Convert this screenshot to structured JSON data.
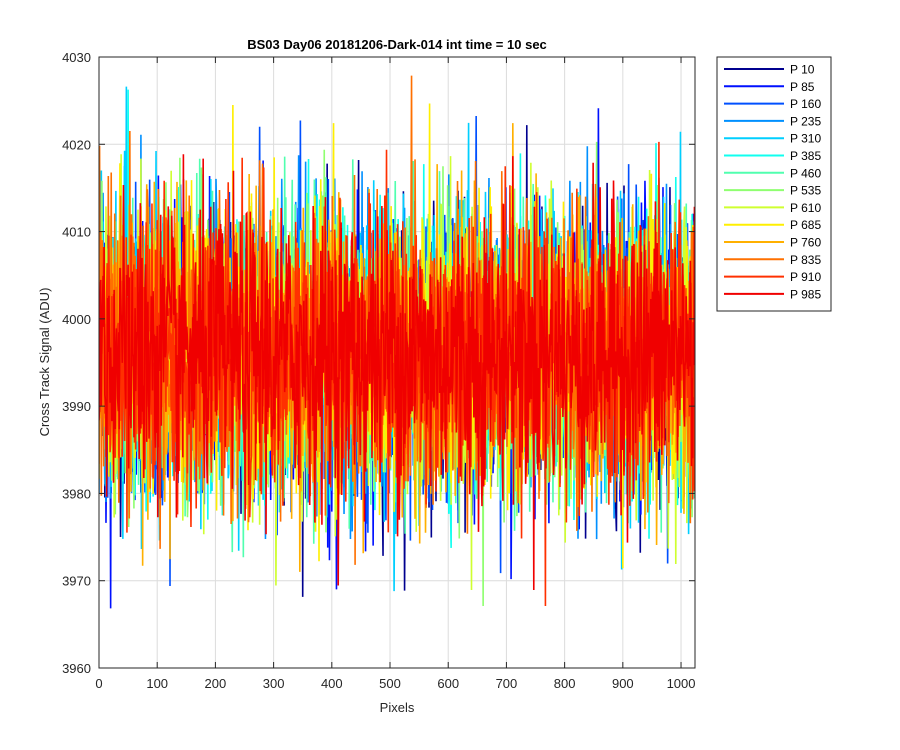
{
  "chart_data": {
    "type": "line",
    "title": "BS03 Day06 20181206-Dark-014 int time = 10 sec",
    "xlabel": "Pixels",
    "ylabel": "Cross Track Signal (ADU)",
    "xlim": [
      0,
      1024
    ],
    "ylim": [
      3960,
      4030
    ],
    "xticks": [
      0,
      100,
      200,
      300,
      400,
      500,
      600,
      700,
      800,
      900,
      1000
    ],
    "yticks": [
      3960,
      3970,
      3980,
      3990,
      4000,
      4010,
      4020,
      4030
    ],
    "grid": true,
    "legend_position": "outside-top-right",
    "mean_signal": 3996,
    "signal_range": [
      3966,
      4029
    ],
    "series": [
      {
        "name": "P 10",
        "color": "#00008F"
      },
      {
        "name": "P 85",
        "color": "#0010FF"
      },
      {
        "name": "P 160",
        "color": "#0050FF"
      },
      {
        "name": "P 235",
        "color": "#0090FF"
      },
      {
        "name": "P 310",
        "color": "#00CFFF"
      },
      {
        "name": "P 385",
        "color": "#10FFEF"
      },
      {
        "name": "P 460",
        "color": "#50FFAF"
      },
      {
        "name": "P 535",
        "color": "#8FFF70"
      },
      {
        "name": "P 610",
        "color": "#CFFF30"
      },
      {
        "name": "P 685",
        "color": "#FFEF00"
      },
      {
        "name": "P 760",
        "color": "#FFB000"
      },
      {
        "name": "P 835",
        "color": "#FF7000"
      },
      {
        "name": "P 910",
        "color": "#FF3000"
      },
      {
        "name": "P 985",
        "color": "#F00000"
      }
    ]
  }
}
